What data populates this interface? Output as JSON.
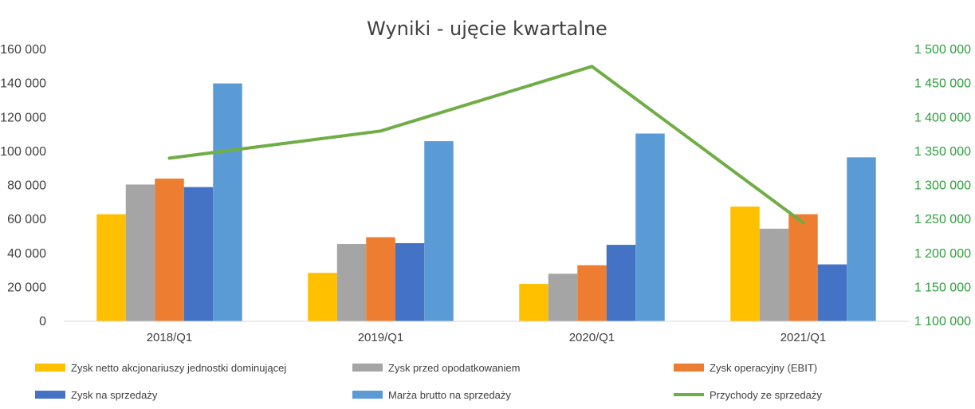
{
  "chart_data": {
    "type": "bar",
    "title": "Wyniki - ujęcie kwartalne",
    "categories": [
      "2018/Q1",
      "2019/Q1",
      "2020/Q1",
      "2021/Q1"
    ],
    "y_left": {
      "range": [
        0,
        160000
      ],
      "ticks": [
        "0",
        "20 000",
        "40 000",
        "60 000",
        "80 000",
        "100 000",
        "120 000",
        "140 000",
        "160 000"
      ],
      "tick_values": [
        0,
        20000,
        40000,
        60000,
        80000,
        100000,
        120000,
        140000,
        160000
      ]
    },
    "y_right": {
      "range": [
        1100000,
        1500000
      ],
      "ticks": [
        "1 100 000",
        "1 150 000",
        "1 200 000",
        "1 250 000",
        "1 300 000",
        "1 350 000",
        "1 400 000",
        "1 450 000",
        "1 500 000"
      ],
      "tick_values": [
        1100000,
        1150000,
        1200000,
        1250000,
        1300000,
        1350000,
        1400000,
        1450000,
        1500000
      ],
      "color": "#2e9e3b"
    },
    "bar_series": [
      {
        "name": "Zysk netto akcjonariuszy jednostki dominującej",
        "color": "#ffc000",
        "values": [
          63000,
          28500,
          22000,
          67500
        ]
      },
      {
        "name": "Zysk przed opodatkowaniem",
        "color": "#a5a5a5",
        "values": [
          80500,
          45500,
          28000,
          54500
        ]
      },
      {
        "name": "Zysk operacyjny (EBIT)",
        "color": "#ed7d31",
        "values": [
          84000,
          49500,
          33000,
          63000
        ]
      },
      {
        "name": "Zysk na sprzedaży",
        "color": "#4472c4",
        "values": [
          79000,
          46000,
          45000,
          33500
        ]
      },
      {
        "name": "Marża brutto na sprzedaży",
        "color": "#5b9bd5",
        "values": [
          140000,
          106000,
          110500,
          96500
        ]
      }
    ],
    "line_series": [
      {
        "name": "Przychody ze sprzedaży",
        "color": "#70ad47",
        "axis": "right",
        "values": [
          1340000,
          1380000,
          1475000,
          1245000
        ]
      }
    ],
    "grid": false,
    "legend_position": "bottom"
  }
}
